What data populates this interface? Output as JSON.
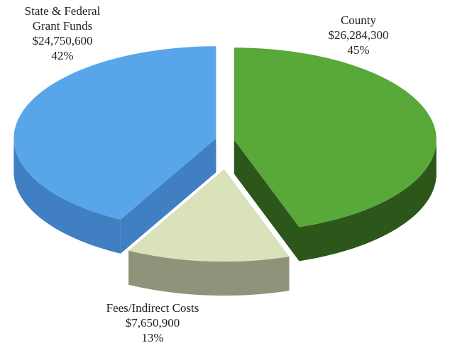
{
  "chart_data": {
    "type": "pie",
    "categories": [
      "County",
      "Fees/Indirect Costs",
      "State & Federal Grant Funds"
    ],
    "values": [
      26284300,
      7650900,
      24750600
    ],
    "value_labels": [
      "$26,284,300",
      "$7,650,900",
      "$24,750,600"
    ],
    "percent_labels": [
      "45%",
      "13%",
      "42%"
    ],
    "colors": [
      "#58a83a",
      "#d9e2ba",
      "#59a5ea"
    ],
    "side_colors": [
      "#2c561a",
      "#8e937a",
      "#3f7fc2"
    ]
  }
}
